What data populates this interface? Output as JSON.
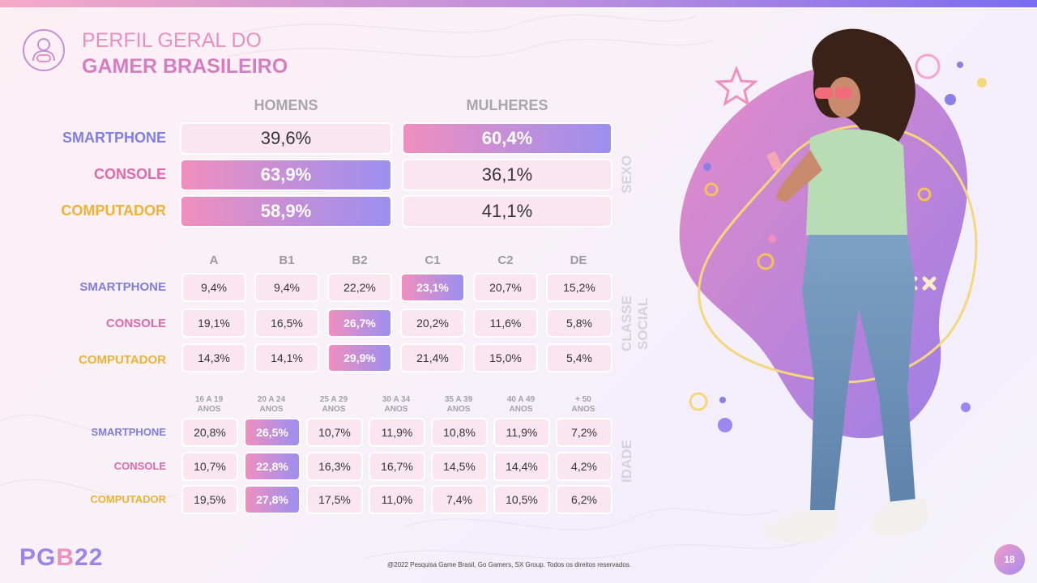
{
  "title": {
    "line1": "PERFIL GERAL DO",
    "line2": "GAMER BRASILEIRO"
  },
  "icons": {
    "header": "gamer-person-icon"
  },
  "sexo": {
    "section_label": "SEXO",
    "headers": [
      "HOMENS",
      "MULHERES"
    ],
    "rows": [
      {
        "label": "SMARTPHONE",
        "values": [
          "39,6%",
          "60,4%"
        ]
      },
      {
        "label": "CONSOLE",
        "values": [
          "63,9%",
          "36,1%"
        ]
      },
      {
        "label": "COMPUTADOR",
        "values": [
          "58,9%",
          "41,1%"
        ]
      }
    ]
  },
  "classe": {
    "section_label": "CLASSE SOCIAL",
    "headers": [
      "A",
      "B1",
      "B2",
      "C1",
      "C2",
      "DE"
    ],
    "rows": [
      {
        "label": "SMARTPHONE",
        "values": [
          "9,4%",
          "9,4%",
          "22,2%",
          "23,1%",
          "20,7%",
          "15,2%"
        ]
      },
      {
        "label": "CONSOLE",
        "values": [
          "19,1%",
          "16,5%",
          "26,7%",
          "20,2%",
          "11,6%",
          "5,8%"
        ]
      },
      {
        "label": "COMPUTADOR",
        "values": [
          "14,3%",
          "14,1%",
          "29,9%",
          "21,4%",
          "15,0%",
          "5,4%"
        ]
      }
    ]
  },
  "idade": {
    "section_label": "IDADE",
    "headers": [
      [
        "16 A 19",
        "ANOS"
      ],
      [
        "20 A 24",
        "ANOS"
      ],
      [
        "25 A 29",
        "ANOS"
      ],
      [
        "30 A 34",
        "ANOS"
      ],
      [
        "35 A 39",
        "ANOS"
      ],
      [
        "40 A 49",
        "ANOS"
      ],
      [
        "+ 50",
        "ANOS"
      ]
    ],
    "rows": [
      {
        "label": "SMARTPHONE",
        "values": [
          "20,8%",
          "26,5%",
          "10,7%",
          "11,9%",
          "10,8%",
          "11,9%",
          "7,2%"
        ]
      },
      {
        "label": "CONSOLE",
        "values": [
          "10,7%",
          "22,8%",
          "16,3%",
          "16,7%",
          "14,5%",
          "14,4%",
          "4,2%"
        ]
      },
      {
        "label": "COMPUTADOR",
        "values": [
          "19,5%",
          "27,8%",
          "17,5%",
          "11,0%",
          "7,4%",
          "10,5%",
          "6,2%"
        ]
      }
    ]
  },
  "footer": "@2022 Pesquisa Game Brasil, Go Gamers, SX Group. Todos os direitos reservados.",
  "brand": {
    "left": "PG",
    "mid": "B",
    "right": "22"
  },
  "page_number": "18",
  "colors": {
    "smartphone": "#7f7ee3",
    "console": "#e268a9",
    "computador": "#efb236",
    "highlight_start": "#f08fbe",
    "highlight_end": "#9b8ff0"
  }
}
